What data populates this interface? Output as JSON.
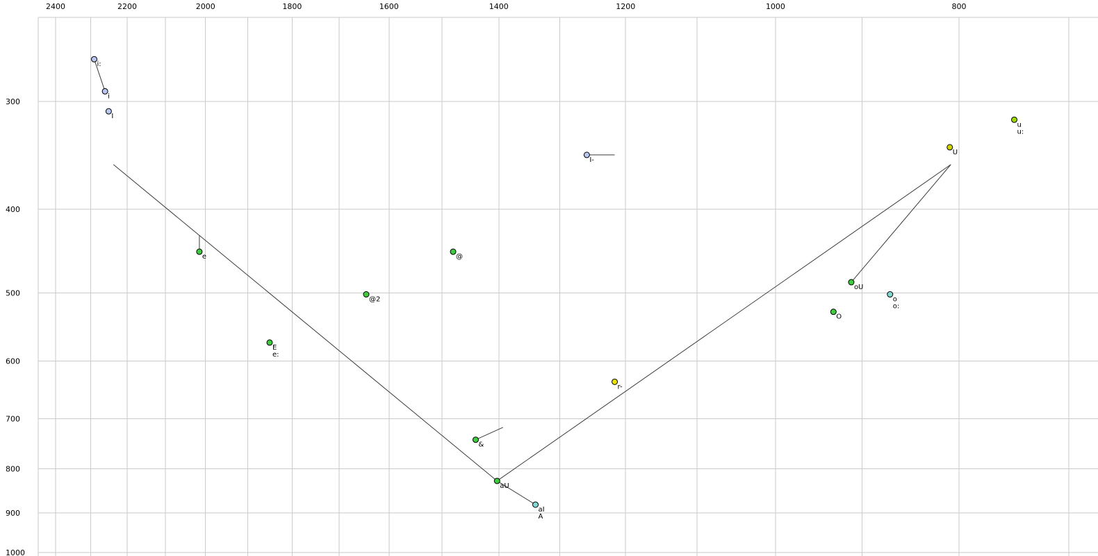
{
  "chart_data": {
    "type": "scatter",
    "title": "",
    "description": "Vowel formant plot: F2 (Hz, log scale, reversed) across top axis, F1 (Hz, log scale) down left axis, with vowel tokens and diphthong trajectory lines",
    "grid": true,
    "x_axis": {
      "scale": "log",
      "reversed": true,
      "range": [
        2460,
        675
      ],
      "labeled_ticks": [
        2400,
        2200,
        2000,
        1800,
        1600,
        1400,
        1200,
        1000,
        800
      ],
      "minor_ticks": [
        2300,
        2100,
        1900,
        1700,
        1500,
        1300,
        1100,
        900,
        700
      ]
    },
    "y_axis": {
      "scale": "log",
      "range": [
        240,
        1010
      ],
      "labeled_ticks": [
        300,
        400,
        500,
        600,
        700,
        800,
        900,
        1000
      ]
    },
    "colors": {
      "lavender": "#b9c6f0",
      "green": "#3fcb3f",
      "cyan": "#80d8d0",
      "yellow": "#e8e000",
      "chartreuse": "#9fd800",
      "yellowgreen": "#cfd400",
      "grid": "#cacaca",
      "line": "#3c3c3c"
    },
    "points": [
      {
        "label": "i:",
        "f2": 2290,
        "f1": 268,
        "color": "lavender"
      },
      {
        "label": "i",
        "f2": 2260,
        "f1": 292,
        "color": "lavender"
      },
      {
        "label": "I",
        "f2": 2250,
        "f1": 308,
        "color": "lavender"
      },
      {
        "label": "I-",
        "f2": 1258,
        "f1": 346,
        "color": "lavender",
        "whisker": {
          "f2": 1216,
          "f1": 346
        }
      },
      {
        "label": "u",
        "label2": "u:",
        "f2": 748,
        "f1": 315,
        "color": "chartreuse"
      },
      {
        "label": "U",
        "f2": 809,
        "f1": 339,
        "color": "yellowgreen"
      },
      {
        "label": "e",
        "f2": 2015,
        "f1": 448,
        "color": "green",
        "whisker": {
          "f2": 2015,
          "f1": 429
        }
      },
      {
        "label": "@",
        "f2": 1480,
        "f1": 448,
        "color": "green"
      },
      {
        "label": "@2",
        "f2": 1645,
        "f1": 502,
        "color": "green"
      },
      {
        "label": "oU",
        "f2": 912,
        "f1": 486,
        "color": "green"
      },
      {
        "label": "o",
        "label2": "o:",
        "f2": 870,
        "f1": 502,
        "color": "cyan"
      },
      {
        "label": "O",
        "f2": 932,
        "f1": 526,
        "color": "green"
      },
      {
        "label": "E",
        "label2": "e:",
        "f2": 1850,
        "f1": 571,
        "color": "green"
      },
      {
        "label": "r-",
        "f2": 1216,
        "f1": 634,
        "color": "yellow"
      },
      {
        "label": "&",
        "f2": 1440,
        "f1": 740,
        "color": "green",
        "whisker": {
          "f2": 1393,
          "f1": 716
        }
      },
      {
        "label": "aU",
        "f2": 1403,
        "f1": 826,
        "color": "green"
      },
      {
        "label": "aI",
        "label2": "A",
        "f2": 1339,
        "f1": 880,
        "color": "cyan"
      }
    ],
    "lines": [
      {
        "from": [
          2237,
          355
        ],
        "to": [
          1403,
          826
        ]
      },
      {
        "from": [
          1403,
          826
        ],
        "to": [
          808,
          355
        ]
      },
      {
        "from": [
          808,
          355
        ],
        "to": [
          912,
          486
        ]
      },
      {
        "from": [
          1403,
          826
        ],
        "to": [
          1339,
          880
        ]
      },
      {
        "from": [
          2290,
          268
        ],
        "to": [
          2260,
          292
        ]
      }
    ]
  }
}
